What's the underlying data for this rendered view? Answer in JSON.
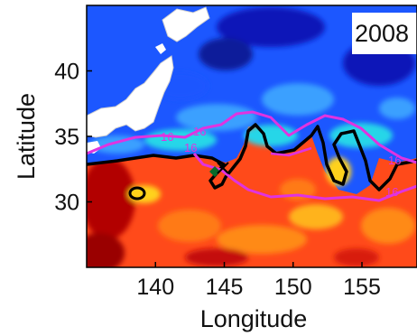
{
  "panel": {
    "year_label": "2008",
    "xlabel": "Longitude",
    "ylabel": "Latitude",
    "x_ticks": [
      "140",
      "145",
      "150",
      "155"
    ],
    "y_ticks": [
      "30",
      "35",
      "40"
    ],
    "xlim": [
      135,
      159
    ],
    "ylim": [
      25,
      45
    ]
  },
  "contours": {
    "label_value": "16",
    "label_color": "#e033e0",
    "line_color": "#000000"
  },
  "colors": {
    "warm_dark": "#8a0000",
    "warm": "#ff3b1a",
    "orange": "#ff8a16",
    "yellow": "#ffd21a",
    "cyan": "#27d6e8",
    "light_blue": "#3aa0ff",
    "blue": "#1c57ff",
    "dark_blue": "#0a16b8",
    "land": "#ffffff",
    "magenta": "#e033e0",
    "green_marker": "#0a6b2a"
  }
}
